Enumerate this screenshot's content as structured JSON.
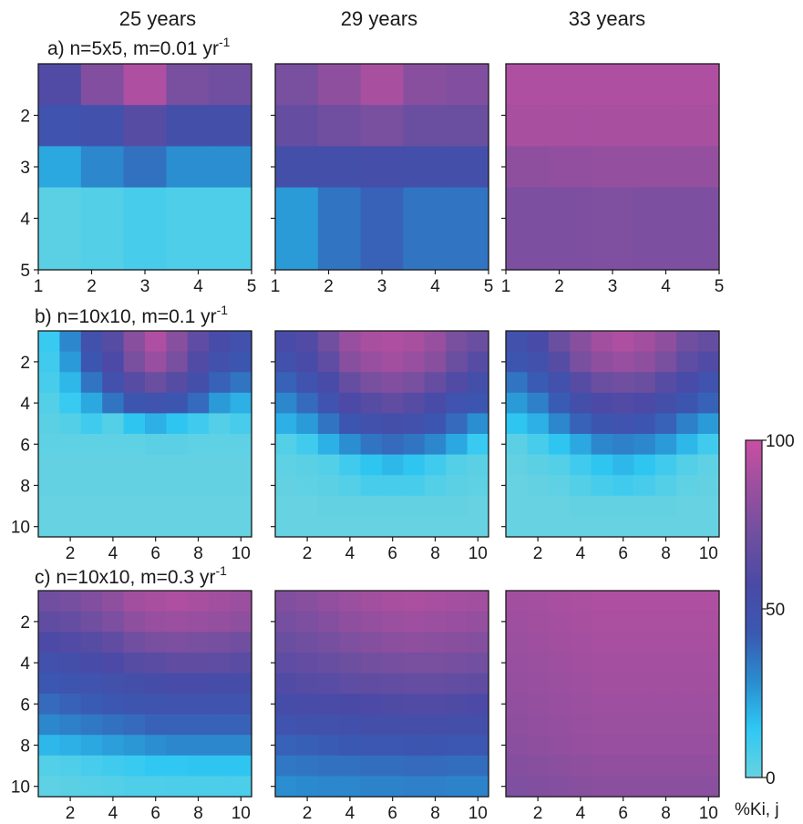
{
  "colors": {
    "colormap": [
      "#67d2e1",
      "#2fc8f3",
      "#2a8ccf",
      "#3a58b2",
      "#4a4aa6",
      "#6e4fa0",
      "#9a4f9f",
      "#c94fa3"
    ],
    "axis": "#1a1a1a",
    "background": "#ffffff"
  },
  "chart_data": {
    "type": "heatmap",
    "col_titles": [
      "25 years",
      "29 years",
      "33 years"
    ],
    "row_labels": [
      {
        "text": "a) n=5x5, m=0.01 yr",
        "sup": "-1"
      },
      {
        "text": "b) n=10x10, m=0.1 yr",
        "sup": "-1"
      },
      {
        "text": "c) n=10x10, m=0.3 yr",
        "sup": "-1"
      }
    ],
    "colorbar": {
      "min": 0,
      "max": 100,
      "ticks": [
        0,
        50,
        100
      ],
      "tick_labels": [
        "0",
        "50",
        "100"
      ],
      "label": "%Ki, j"
    },
    "panels": [
      {
        "row": 0,
        "col": 0,
        "n": 5,
        "xticks": [
          "1",
          "2",
          "3",
          "4",
          "5"
        ],
        "yticks": [
          "2",
          "3",
          "4",
          "5"
        ],
        "values": [
          [
            60,
            78,
            92,
            75,
            72
          ],
          [
            48,
            50,
            62,
            52,
            52
          ],
          [
            22,
            30,
            36,
            28,
            28
          ],
          [
            3,
            5,
            8,
            6,
            6
          ],
          [
            3,
            5,
            8,
            6,
            6
          ]
        ]
      },
      {
        "row": 0,
        "col": 1,
        "n": 5,
        "xticks": [
          "1",
          "2",
          "3",
          "4",
          "5"
        ],
        "yticks": [],
        "values": [
          [
            75,
            82,
            90,
            80,
            78
          ],
          [
            68,
            72,
            75,
            70,
            70
          ],
          [
            52,
            52,
            53,
            52,
            52
          ],
          [
            25,
            35,
            40,
            35,
            35
          ],
          [
            25,
            35,
            40,
            35,
            35
          ]
        ]
      },
      {
        "row": 0,
        "col": 2,
        "n": 5,
        "xticks": [
          "1",
          "2",
          "3",
          "4",
          "5"
        ],
        "yticks": [],
        "values": [
          [
            92,
            92,
            92,
            92,
            92
          ],
          [
            90,
            90,
            90,
            90,
            90
          ],
          [
            82,
            83,
            84,
            84,
            84
          ],
          [
            76,
            76,
            77,
            76,
            76
          ],
          [
            76,
            76,
            77,
            76,
            76
          ]
        ]
      },
      {
        "row": 1,
        "col": 0,
        "n": 10,
        "xticks": [
          "2",
          "4",
          "6",
          "8",
          "10"
        ],
        "yticks": [
          "2",
          "4",
          "6",
          "8",
          "10"
        ],
        "values": [
          [
            12,
            30,
            50,
            62,
            80,
            92,
            80,
            65,
            55,
            50
          ],
          [
            10,
            25,
            45,
            58,
            75,
            85,
            75,
            60,
            50,
            45
          ],
          [
            8,
            18,
            35,
            50,
            62,
            70,
            62,
            52,
            40,
            35
          ],
          [
            5,
            12,
            22,
            35,
            45,
            48,
            45,
            38,
            25,
            20
          ],
          [
            3,
            5,
            10,
            5,
            15,
            20,
            15,
            10,
            5,
            8
          ],
          [
            2,
            2,
            2,
            2,
            2,
            3,
            3,
            2,
            2,
            2
          ],
          [
            1,
            1,
            1,
            1,
            1,
            1,
            1,
            1,
            1,
            1
          ],
          [
            1,
            1,
            1,
            1,
            1,
            1,
            1,
            1,
            1,
            1
          ],
          [
            0,
            0,
            0,
            0,
            0,
            0,
            0,
            0,
            0,
            0
          ],
          [
            0,
            0,
            0,
            0,
            0,
            0,
            0,
            0,
            0,
            0
          ]
        ]
      },
      {
        "row": 1,
        "col": 1,
        "n": 10,
        "xticks": [
          "2",
          "4",
          "6",
          "8",
          "10"
        ],
        "yticks": [],
        "values": [
          [
            55,
            60,
            72,
            85,
            90,
            92,
            90,
            85,
            75,
            70
          ],
          [
            50,
            55,
            65,
            80,
            85,
            88,
            85,
            80,
            70,
            62
          ],
          [
            40,
            48,
            55,
            68,
            75,
            78,
            75,
            68,
            60,
            52
          ],
          [
            30,
            38,
            48,
            58,
            62,
            66,
            62,
            55,
            48,
            45
          ],
          [
            20,
            25,
            35,
            45,
            50,
            52,
            50,
            45,
            38,
            28
          ],
          [
            5,
            10,
            20,
            28,
            35,
            38,
            35,
            30,
            22,
            12
          ],
          [
            2,
            3,
            5,
            10,
            15,
            18,
            15,
            10,
            5,
            3
          ],
          [
            1,
            2,
            3,
            5,
            8,
            8,
            8,
            5,
            3,
            2
          ],
          [
            0,
            0,
            1,
            1,
            1,
            1,
            1,
            1,
            1,
            0
          ],
          [
            0,
            0,
            0,
            0,
            0,
            0,
            0,
            0,
            0,
            0
          ]
        ]
      },
      {
        "row": 1,
        "col": 2,
        "n": 10,
        "xticks": [
          "2",
          "4",
          "6",
          "8",
          "10"
        ],
        "yticks": [],
        "values": [
          [
            50,
            55,
            70,
            80,
            88,
            92,
            88,
            82,
            72,
            68
          ],
          [
            45,
            50,
            62,
            75,
            82,
            85,
            82,
            75,
            65,
            60
          ],
          [
            35,
            42,
            50,
            62,
            70,
            72,
            70,
            62,
            55,
            48
          ],
          [
            25,
            32,
            42,
            52,
            58,
            60,
            58,
            52,
            45,
            40
          ],
          [
            15,
            20,
            30,
            40,
            45,
            48,
            45,
            40,
            32,
            25
          ],
          [
            3,
            8,
            15,
            22,
            30,
            32,
            30,
            25,
            18,
            10
          ],
          [
            1,
            3,
            5,
            10,
            15,
            18,
            15,
            10,
            5,
            2
          ],
          [
            0,
            1,
            2,
            5,
            8,
            10,
            8,
            5,
            2,
            1
          ],
          [
            0,
            0,
            0,
            1,
            1,
            1,
            1,
            1,
            0,
            0
          ],
          [
            0,
            0,
            0,
            0,
            0,
            0,
            0,
            0,
            0,
            0
          ]
        ]
      },
      {
        "row": 2,
        "col": 0,
        "n": 10,
        "xticks": [
          "2",
          "4",
          "6",
          "8",
          "10"
        ],
        "yticks": [
          "2",
          "4",
          "6",
          "8",
          "10"
        ],
        "values": [
          [
            72,
            74,
            78,
            82,
            88,
            90,
            92,
            90,
            88,
            86
          ],
          [
            66,
            68,
            72,
            76,
            82,
            85,
            86,
            85,
            84,
            82
          ],
          [
            58,
            60,
            62,
            66,
            72,
            75,
            76,
            75,
            74,
            72
          ],
          [
            50,
            52,
            55,
            58,
            62,
            64,
            66,
            66,
            65,
            64
          ],
          [
            44,
            46,
            48,
            50,
            52,
            54,
            55,
            55,
            54,
            54
          ],
          [
            38,
            40,
            42,
            44,
            46,
            47,
            48,
            48,
            48,
            48
          ],
          [
            30,
            32,
            34,
            36,
            38,
            40,
            40,
            40,
            40,
            40
          ],
          [
            18,
            20,
            22,
            24,
            26,
            28,
            30,
            30,
            30,
            30
          ],
          [
            5,
            6,
            8,
            10,
            12,
            14,
            14,
            15,
            15,
            15
          ],
          [
            2,
            3,
            4,
            5,
            6,
            6,
            7,
            7,
            7,
            7
          ]
        ]
      },
      {
        "row": 2,
        "col": 1,
        "n": 10,
        "xticks": [
          "2",
          "4",
          "6",
          "8",
          "10"
        ],
        "yticks": [],
        "values": [
          [
            78,
            80,
            83,
            86,
            88,
            90,
            91,
            90,
            89,
            88
          ],
          [
            74,
            76,
            79,
            82,
            84,
            86,
            87,
            86,
            85,
            84
          ],
          [
            70,
            72,
            74,
            77,
            79,
            81,
            82,
            81,
            80,
            79
          ],
          [
            65,
            67,
            69,
            71,
            73,
            74,
            75,
            75,
            74,
            73
          ],
          [
            60,
            62,
            63,
            65,
            66,
            67,
            68,
            68,
            67,
            66
          ],
          [
            54,
            55,
            56,
            57,
            58,
            59,
            60,
            60,
            59,
            58
          ],
          [
            48,
            49,
            50,
            51,
            52,
            52,
            53,
            53,
            52,
            52
          ],
          [
            40,
            41,
            42,
            43,
            44,
            44,
            45,
            45,
            44,
            44
          ],
          [
            34,
            35,
            36,
            36,
            37,
            37,
            38,
            38,
            37,
            37
          ],
          [
            28,
            29,
            30,
            30,
            31,
            31,
            32,
            32,
            31,
            31
          ]
        ]
      },
      {
        "row": 2,
        "col": 2,
        "n": 10,
        "xticks": [
          "2",
          "4",
          "6",
          "8",
          "10"
        ],
        "yticks": [],
        "values": [
          [
            88,
            89,
            90,
            91,
            92,
            92,
            92,
            92,
            92,
            92
          ],
          [
            87,
            88,
            89,
            90,
            91,
            91,
            91,
            91,
            91,
            91
          ],
          [
            86,
            87,
            88,
            89,
            90,
            90,
            90,
            90,
            90,
            90
          ],
          [
            85,
            86,
            87,
            88,
            89,
            89,
            89,
            89,
            89,
            89
          ],
          [
            84,
            85,
            86,
            87,
            88,
            88,
            88,
            88,
            88,
            88
          ],
          [
            83,
            84,
            85,
            86,
            87,
            87,
            87,
            87,
            87,
            87
          ],
          [
            82,
            83,
            84,
            85,
            86,
            86,
            86,
            86,
            86,
            86
          ],
          [
            81,
            82,
            83,
            84,
            85,
            85,
            85,
            85,
            85,
            85
          ],
          [
            79,
            80,
            81,
            82,
            83,
            83,
            83,
            83,
            83,
            83
          ],
          [
            77,
            78,
            79,
            80,
            81,
            81,
            81,
            81,
            81,
            81
          ]
        ]
      }
    ]
  }
}
